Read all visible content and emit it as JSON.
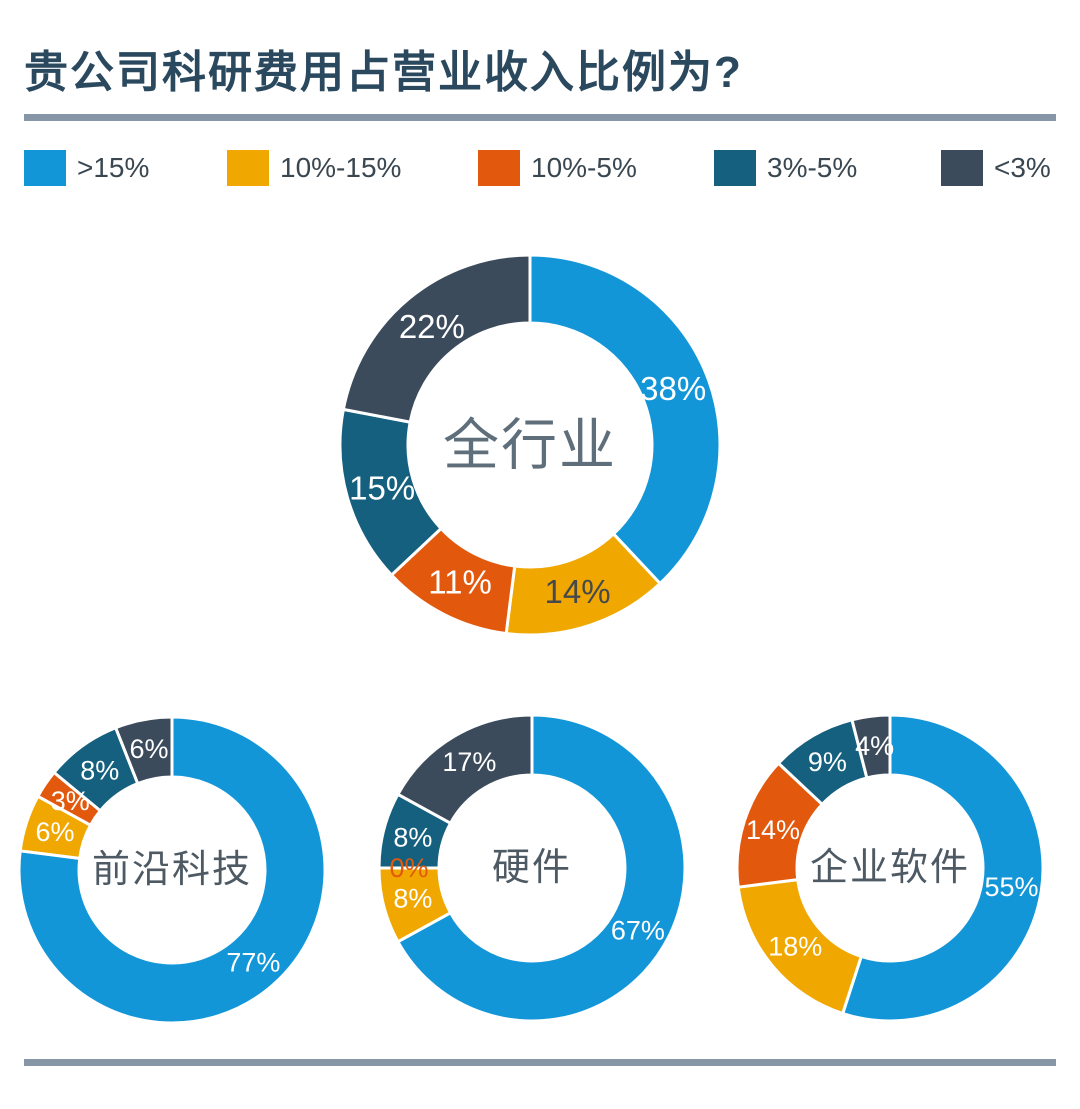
{
  "header": {
    "title": "贵公司科研费用占营业收入比例为?"
  },
  "theme": {
    "title_color": "#2A485E",
    "divider_color": "#8696A6",
    "background": "#FFFFFF"
  },
  "legend": {
    "position": "top",
    "items": [
      {
        "label": ">15%",
        "color": "#1296D8"
      },
      {
        "label": "10%-15%",
        "color": "#F0A800"
      },
      {
        "label": "10%-5%",
        "color": "#E2590E"
      },
      {
        "label": "3%-5%",
        "color": "#15607E"
      },
      {
        "label": "<3%",
        "color": "#3C4B5C"
      }
    ]
  },
  "chart_data": [
    {
      "type": "pie",
      "subtype": "donut",
      "title": "全行业",
      "title_color": "#5E6E7A",
      "categories": [
        ">15%",
        "10%-15%",
        "10%-5%",
        "3%-5%",
        "<3%"
      ],
      "values": [
        38,
        14,
        11,
        15,
        22
      ],
      "labels": [
        "38%",
        "14%",
        "11%",
        "15%",
        "22%"
      ],
      "label_colors": [
        "#FFFFFF",
        "#45494D",
        "#FFFFFF",
        "#FFFFFF",
        "#FFFFFF"
      ],
      "start_angle_deg": 0,
      "direction": "clockwise"
    },
    {
      "type": "pie",
      "subtype": "donut",
      "title": "前沿科技",
      "title_color": "#4D5963",
      "categories": [
        ">15%",
        "10%-15%",
        "10%-5%",
        "3%-5%",
        "<3%"
      ],
      "values": [
        77,
        6,
        3,
        8,
        6
      ],
      "labels": [
        "77%",
        "6%",
        "3%",
        "8%",
        "6%"
      ],
      "label_colors": [
        "#FFFFFF",
        "#FFFFFF",
        "#FFFFFF",
        "#FFFFFF",
        "#FFFFFF"
      ],
      "start_angle_deg": 0,
      "direction": "clockwise"
    },
    {
      "type": "pie",
      "subtype": "donut",
      "title": "硬件",
      "title_color": "#4D5963",
      "categories": [
        ">15%",
        "10%-15%",
        "10%-5%",
        "3%-5%",
        "<3%"
      ],
      "values": [
        67,
        8,
        0,
        8,
        17
      ],
      "labels": [
        "67%",
        "8%",
        "0%",
        "8%",
        "17%"
      ],
      "label_colors": [
        "#FFFFFF",
        "#FFFFFF",
        "#E2590E",
        "#FFFFFF",
        "#FFFFFF"
      ],
      "start_angle_deg": 0,
      "direction": "clockwise"
    },
    {
      "type": "pie",
      "subtype": "donut",
      "title": "企业软件",
      "title_color": "#4D5963",
      "categories": [
        ">15%",
        "10%-15%",
        "10%-5%",
        "3%-5%",
        "<3%"
      ],
      "values": [
        55,
        18,
        14,
        9,
        4
      ],
      "labels": [
        "55%",
        "18%",
        "14%",
        "9%",
        "4%"
      ],
      "label_colors": [
        "#FFFFFF",
        "#FFFFFF",
        "#FFFFFF",
        "#FFFFFF",
        "#FFFFFF"
      ],
      "start_angle_deg": 0,
      "direction": "clockwise"
    }
  ]
}
